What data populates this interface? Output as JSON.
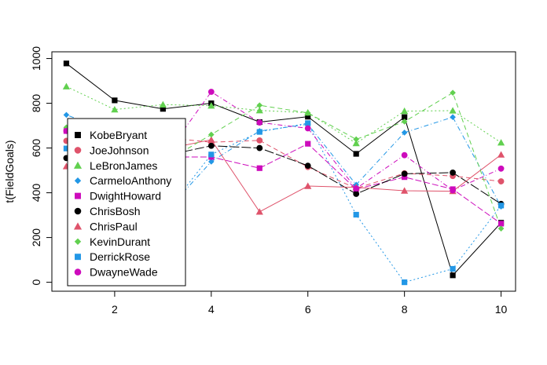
{
  "chart_data": {
    "type": "line",
    "title": "",
    "xlabel": "",
    "ylabel": "t(FieldGoals)",
    "xlim": [
      0.7,
      10.3
    ],
    "ylim": [
      -40,
      1030
    ],
    "x_ticks": [
      2,
      4,
      6,
      8,
      10
    ],
    "y_ticks": [
      0,
      200,
      400,
      600,
      800,
      1000
    ],
    "grid": false,
    "legend_position": "bottom-left",
    "x": [
      1,
      2,
      3,
      4,
      5,
      6,
      7,
      8,
      9,
      10
    ],
    "series": [
      {
        "name": "KobeBryant",
        "color": "#000000",
        "marker": "square",
        "dash": "",
        "values": [
          978,
          813,
          775,
          800,
          716,
          740,
          574,
          738,
          31,
          266
        ]
      },
      {
        "name": "JoeJohnson",
        "color": "#DF536B",
        "marker": "circle",
        "dash": "6,4",
        "values": [
          632,
          536,
          647,
          626,
          634,
          515,
          420,
          487,
          475,
          451
        ]
      },
      {
        "name": "LeBronJames",
        "color": "#61D04F",
        "marker": "triangle",
        "dash": "2,3",
        "values": [
          875,
          772,
          794,
          789,
          768,
          758,
          621,
          765,
          767,
          624
        ]
      },
      {
        "name": "CarmeloAnthony",
        "color": "#2297E6",
        "marker": "diamond",
        "dash": "1,3,6,3",
        "values": [
          748,
          669,
          302,
          539,
          676,
          706,
          436,
          669,
          738,
          338
        ]
      },
      {
        "name": "DwightHoward",
        "color": "#CD0BBC",
        "marker": "square",
        "dash": "8,3",
        "values": [
          676,
          651,
          560,
          560,
          510,
          619,
          416,
          470,
          416,
          262
        ]
      },
      {
        "name": "ChrisBosh",
        "color": "#000000",
        "marker": "circle",
        "dash": "12,3",
        "values": [
          555,
          581,
          564,
          610,
          600,
          521,
          395,
          485,
          490,
          350
        ]
      },
      {
        "name": "ChrisPaul",
        "color": "#DF536B",
        "marker": "triangle",
        "dash": "",
        "values": [
          518,
          632,
          593,
          637,
          315,
          430,
          424,
          409,
          407,
          570
        ]
      },
      {
        "name": "KevinDurant",
        "color": "#61D04F",
        "marker": "diamond",
        "dash": "6,4",
        "values": [
          692,
          657,
          532,
          660,
          791,
          757,
          639,
          718,
          847,
          240
        ]
      },
      {
        "name": "DerrickRose",
        "color": "#2297E6",
        "marker": "square",
        "dash": "2,3",
        "values": [
          598,
          588,
          295,
          571,
          672,
          711,
          302,
          0,
          60,
          343
        ]
      },
      {
        "name": "DwayneWade",
        "color": "#CD0BBC",
        "marker": "circle",
        "dash": "1,3,6,3",
        "values": [
          676,
          618,
          552,
          851,
          714,
          688,
          419,
          568,
          411,
          508
        ]
      }
    ]
  }
}
